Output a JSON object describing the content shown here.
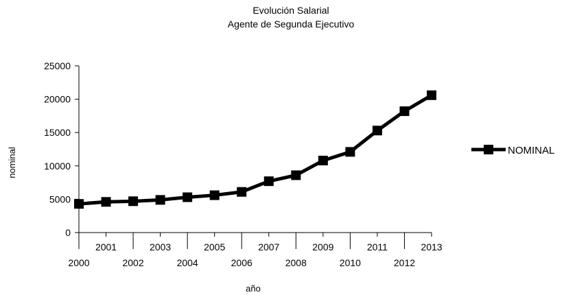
{
  "chart_data": {
    "type": "line",
    "title": "Evolución Salarial",
    "subtitle": "Agente de Segunda Ejecutivo",
    "xlabel": "año",
    "ylabel": "nominal",
    "x": [
      "2000",
      "2001",
      "2002",
      "2003",
      "2004",
      "2005",
      "2006",
      "2007",
      "2008",
      "2009",
      "2010",
      "2011",
      "2012",
      "2013"
    ],
    "series": [
      {
        "name": "NOMINAL",
        "color": "#000000",
        "values": [
          4300,
          4600,
          4700,
          4900,
          5300,
          5600,
          6100,
          7700,
          8600,
          10800,
          12100,
          15300,
          18200,
          20600
        ]
      }
    ],
    "ylim": [
      0,
      25000
    ],
    "yticks": [
      "0",
      "5000",
      "10000",
      "15000",
      "20000",
      "25000"
    ],
    "grid": false,
    "legend_position": "right"
  }
}
